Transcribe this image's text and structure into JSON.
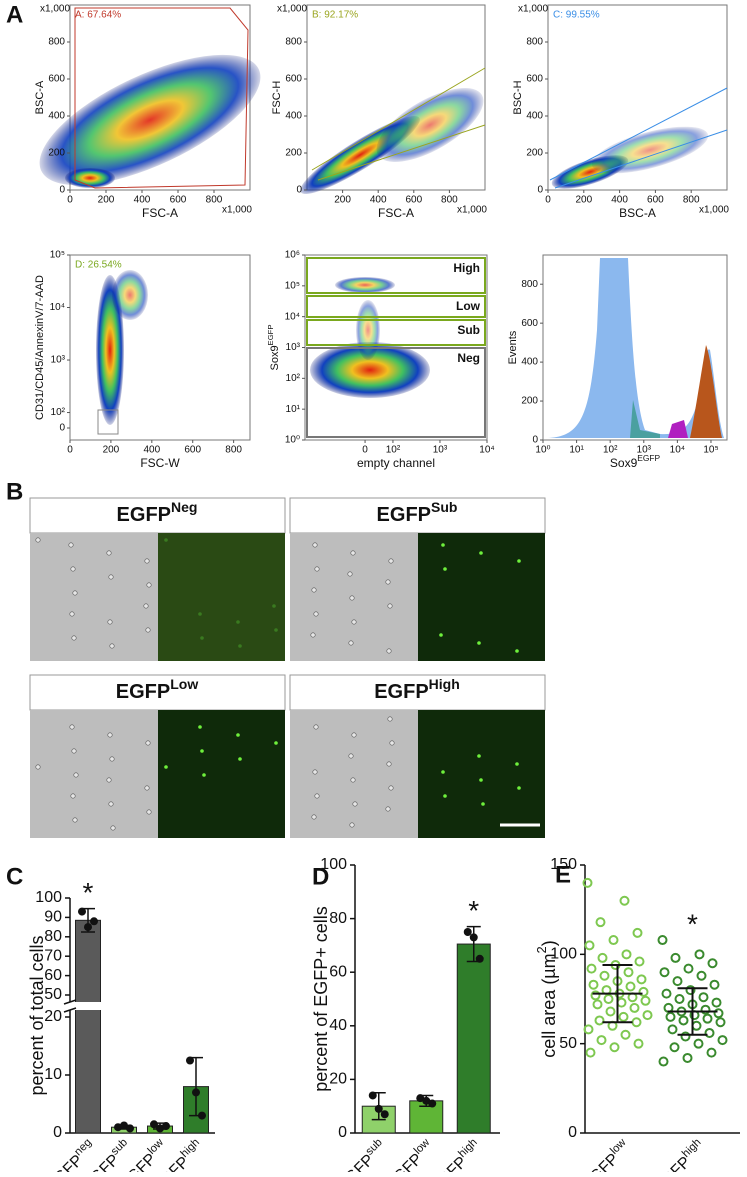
{
  "panel_labels": [
    "A",
    "B",
    "C",
    "D",
    "E"
  ],
  "flow_plots": [
    {
      "gate": "A: 67.64%",
      "gate_color": "#c0392b",
      "xlabel": "FSC-A",
      "ylabel": "BSC-A",
      "xmult": "x1,000",
      "ymult": "x1,000",
      "xlim": [
        0,
        1000
      ],
      "xticks": [
        0,
        200,
        400,
        600,
        800
      ],
      "ylim": [
        0,
        1000
      ],
      "yticks": [
        0,
        200,
        400,
        600,
        800
      ]
    },
    {
      "gate": "B: 92.17%",
      "gate_color": "#9aa51f",
      "xlabel": "FSC-A",
      "ylabel": "FSC-H",
      "xmult": "x1,000",
      "ymult": "x1,000",
      "xlim": [
        0,
        1000
      ],
      "xticks": [
        200,
        400,
        600,
        800
      ],
      "ylim": [
        0,
        1000
      ],
      "yticks": [
        0,
        200,
        400,
        600,
        800
      ]
    },
    {
      "gate": "C: 99.55%",
      "gate_color": "#3a8ee6",
      "xlabel": "BSC-A",
      "ylabel": "BSC-H",
      "xmult": "x1,000",
      "ymult": "x1,000",
      "xlim": [
        0,
        1000
      ],
      "xticks": [
        0,
        200,
        400,
        600,
        800
      ],
      "ylim": [
        0,
        1000
      ],
      "yticks": [
        0,
        200,
        400,
        600,
        800
      ]
    },
    {
      "gate": "D: 26.54%",
      "gate_color": "#7aa81e",
      "xlabel": "FSC-W",
      "ylabel": "CD31/CD45/AnnexinV/7-AAD",
      "xlim": [
        0,
        880
      ],
      "xticks": [
        0,
        200,
        400,
        600,
        800
      ],
      "ylog": true,
      "ylim": [
        30,
        100000
      ],
      "yticks": [
        0,
        {
          "value": 100,
          "label": "10²"
        },
        {
          "value": 1000,
          "label": "10³"
        },
        {
          "value": 10000,
          "label": "10⁴"
        },
        {
          "value": 100000,
          "label": "10⁵"
        }
      ]
    },
    {
      "gates": [
        "High",
        "Low",
        "Sub",
        "Neg"
      ],
      "xlabel": "empty channel",
      "ylabel": {
        "base": "Sox9",
        "sup": "EGFP"
      },
      "xlog": true,
      "xlim": [
        1.35,
        10000
      ],
      "xticks": [
        0,
        {
          "value": 100,
          "label": "10²"
        },
        {
          "value": 1000,
          "label": "10³"
        },
        {
          "value": 10000,
          "label": "10⁴"
        }
      ],
      "ylog": true,
      "ylim": [
        1,
        1000000
      ],
      "yticks": [
        {
          "value": 1,
          "label": "10⁰"
        },
        {
          "value": 10,
          "label": "10¹"
        },
        {
          "value": 100,
          "label": "10²"
        },
        {
          "value": 1000,
          "label": "10³"
        },
        {
          "value": 10000,
          "label": "10⁴"
        },
        {
          "value": 100000,
          "label": "10⁵"
        },
        {
          "value": 1000000,
          "label": "10⁶"
        }
      ]
    },
    {
      "xlabel": {
        "base": "Sox9",
        "sup": "EGFP"
      },
      "ylabel": "Events",
      "xlog": true,
      "xlim": [
        1,
        300000
      ],
      "xticks": [
        {
          "value": 1,
          "label": "10⁰"
        },
        {
          "value": 10,
          "label": "10¹"
        },
        {
          "value": 100,
          "label": "10²"
        },
        {
          "value": 1000,
          "label": "10³"
        },
        {
          "value": 10000,
          "label": "10⁴"
        },
        {
          "value": 100000,
          "label": "10⁵"
        }
      ],
      "ylim": [
        0,
        950
      ],
      "yticks": [
        0,
        200,
        400,
        600,
        800
      ]
    }
  ],
  "images": [
    {
      "title": {
        "base": "EGFP",
        "sup": "Neg"
      }
    },
    {
      "title": {
        "base": "EGFP",
        "sup": "Sub"
      }
    },
    {
      "title": {
        "base": "EGFP",
        "sup": "Low"
      }
    },
    {
      "title": {
        "base": "EGFP",
        "sup": "High"
      }
    }
  ],
  "chart_data": [
    {
      "type": "bar",
      "ylabel": "percent of total cells",
      "categories": [
        {
          "base": "GFP",
          "sup": "neg"
        },
        {
          "base": "GFP",
          "sup": "sub"
        },
        {
          "base": "GFP",
          "sup": "low"
        },
        {
          "base": "GFP",
          "sup": "high"
        }
      ],
      "values": [
        88.5,
        1,
        1.2,
        8
      ],
      "errors": [
        6,
        0.3,
        0.5,
        5
      ],
      "points": [
        [
          93,
          85,
          88
        ],
        [
          1,
          1.3,
          0.8
        ],
        [
          1.5,
          0.8,
          1.2
        ],
        [
          12.5,
          7,
          3
        ]
      ],
      "colors": [
        "#5a5a5a",
        "#8fd16a",
        "#5fb536",
        "#2f7d2a"
      ],
      "ylim": [
        0,
        100
      ],
      "ybreak": [
        20,
        50
      ],
      "yticks": [
        0,
        10,
        20,
        50,
        60,
        70,
        80,
        90,
        100
      ],
      "annotation": "*",
      "annotation_index": 0
    },
    {
      "type": "bar",
      "ylabel": "percent of EGFP+ cells",
      "categories": [
        {
          "base": "GFP",
          "sup": "sub"
        },
        {
          "base": "GFP",
          "sup": "low"
        },
        {
          "base": "GFP",
          "sup": "high"
        }
      ],
      "values": [
        10,
        12,
        70.5
      ],
      "errors": [
        5,
        2,
        6.5
      ],
      "points": [
        [
          14,
          9,
          7
        ],
        [
          13,
          12,
          11
        ],
        [
          75,
          73,
          65
        ]
      ],
      "colors": [
        "#8fd16a",
        "#5fb536",
        "#2f7d2a"
      ],
      "ylim": [
        0,
        100
      ],
      "yticks": [
        0,
        20,
        40,
        60,
        80,
        100
      ],
      "annotation": "*",
      "annotation_index": 2
    },
    {
      "type": "dots",
      "ylabel": {
        "base": "cell area (µm",
        "sup": "2",
        "tail": ")"
      },
      "categories": [
        {
          "base": "GFP",
          "sup": "low"
        },
        {
          "base": "GFP",
          "sup": "high"
        }
      ],
      "points": [
        [
          140,
          130,
          118,
          112,
          108,
          105,
          100,
          98,
          96,
          94,
          92,
          90,
          88,
          86,
          85,
          83,
          82,
          80,
          79,
          78,
          77,
          76,
          75,
          74,
          73,
          72,
          70,
          68,
          66,
          65,
          63,
          62,
          60,
          58,
          55,
          52,
          50,
          48,
          45
        ],
        [
          108,
          100,
          98,
          95,
          92,
          90,
          88,
          85,
          83,
          80,
          78,
          76,
          75,
          73,
          72,
          70,
          69,
          68,
          67,
          66,
          65,
          64,
          63,
          62,
          60,
          58,
          56,
          54,
          52,
          50,
          48,
          45,
          42,
          40
        ]
      ],
      "means": [
        78,
        68
      ],
      "sds": [
        16,
        13
      ],
      "colors": [
        "#7ec850",
        "#3a8a2e"
      ],
      "ylim": [
        0,
        150
      ],
      "yticks": [
        0,
        50,
        100,
        150
      ],
      "annotation": "*",
      "annotation_index": 1
    }
  ]
}
